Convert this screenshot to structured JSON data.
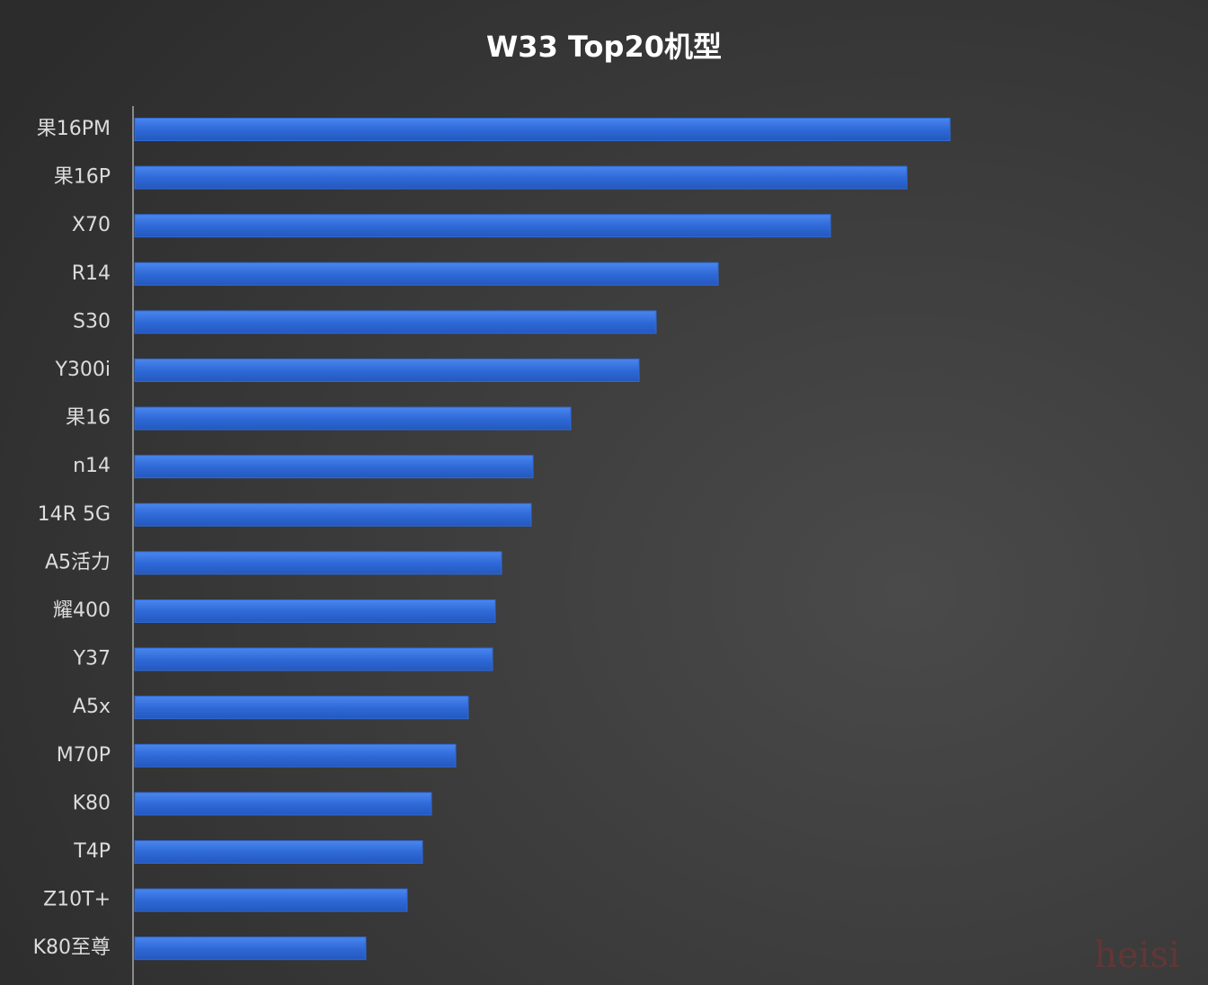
{
  "chart_data": {
    "type": "hbar",
    "title": "W33 Top20机型",
    "categories": [
      "果16PM",
      "果16P",
      "X70",
      "R14",
      "S30",
      "Y300i",
      "果16",
      "n14",
      "14R 5G",
      "A5活力",
      "耀400",
      "Y37",
      "A5x",
      "M70P",
      "K80",
      "T4P",
      "Z10T+",
      "K80至尊"
    ],
    "values": [
      907,
      859,
      774,
      649,
      580,
      561,
      485,
      443,
      441,
      408,
      401,
      398,
      371,
      357,
      330,
      320,
      303,
      257
    ],
    "color": "#2f6ad8",
    "watermark": "heisi"
  }
}
